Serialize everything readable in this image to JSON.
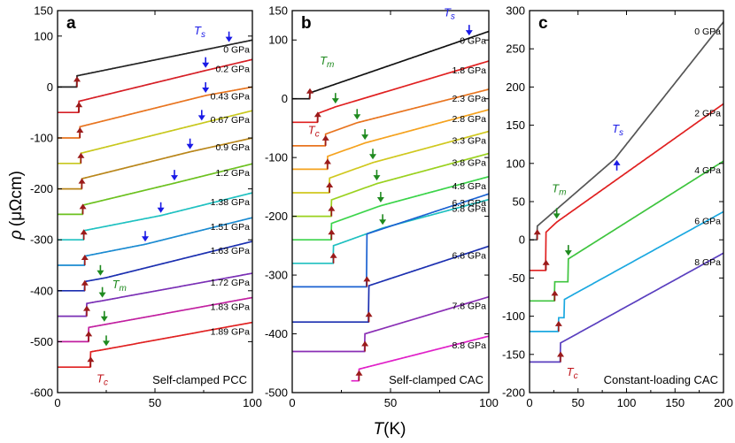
{
  "figure": {
    "xlabel_main": "T",
    "xlabel_unit": "(K)",
    "ylabel_main": "ρ",
    "ylabel_unit": "(μΩcm)"
  },
  "colors": {
    "tc_arrow": "#9b1b1b",
    "ts_arrow": "#1a1ae6",
    "tm_arrow": "#1f8a1f",
    "tc_text": "#c0161c",
    "ts_text": "#1a1ae6",
    "tm_text": "#1f8a1f"
  },
  "chart_data": [
    {
      "type": "line",
      "panel": "a",
      "title": "Self-clamped PCC",
      "xlim": [
        0,
        100
      ],
      "ylim": [
        -600,
        150
      ],
      "xticks": [
        0,
        50,
        100
      ],
      "yticks": [
        150,
        100,
        0,
        -100,
        -200,
        -300,
        -400,
        -500,
        -600
      ],
      "xlabel": "T (K)",
      "ylabel": "ρ (μΩcm)",
      "annotations": {
        "ts": "T",
        "ts_sub": "s",
        "tm": "T",
        "tm_sub": "m",
        "tc": "T",
        "tc_sub": "c"
      },
      "series": [
        {
          "name": "0 GPa",
          "color": "#222222",
          "offset": 0,
          "Tc": 10,
          "jump": 22,
          "s1": 0.78,
          "s2": 0.78,
          "Tk": 150,
          "Ts": 88
        },
        {
          "name": "0.2 GPa",
          "color": "#d61f26",
          "offset": -50,
          "Tc": 11,
          "jump": 22,
          "s1": 0.93,
          "s2": 0.9,
          "Tk": 76,
          "Ts": 76
        },
        {
          "name": "0.43 GPa",
          "color": "#e8741f",
          "offset": -100,
          "Tc": 11.5,
          "jump": 22,
          "s1": 0.95,
          "s2": 0.7,
          "Tk": 76,
          "Ts": 76
        },
        {
          "name": "0.67 GPa",
          "color": "#c8c81e",
          "offset": -150,
          "Tc": 12,
          "jump": 20,
          "s1": 0.95,
          "s2": 0.95,
          "Tk": 70,
          "Ts": 74
        },
        {
          "name": "0.9 GPa",
          "color": "#b9861a",
          "offset": -200,
          "Tc": 12.5,
          "jump": 20,
          "s1": 0.95,
          "s2": 0.85,
          "Tk": 68,
          "Ts": 68
        },
        {
          "name": "1.2 GPa",
          "color": "#6cc11f",
          "offset": -250,
          "Tc": 13,
          "jump": 18,
          "s1": 0.92,
          "s2": 0.95,
          "Tk": 60,
          "Ts": 60
        },
        {
          "name": "1.38 GPa",
          "color": "#1fc1c1",
          "offset": -300,
          "Tc": 13.5,
          "jump": 18,
          "s1": 0.75,
          "s2": 0.95,
          "Tk": 53,
          "Ts": 53
        },
        {
          "name": "1.51 GPa",
          "color": "#1b8bd1",
          "offset": -350,
          "Tc": 14,
          "jump": 18,
          "s1": 0.75,
          "s2": 0.95,
          "Tk": 45,
          "Ts": 45
        },
        {
          "name": "1.63 GPa",
          "color": "#1b2fb0",
          "offset": -400,
          "Tc": 14,
          "jump": 18,
          "s1": 0.7,
          "s2": 0.95,
          "Tk": 25,
          "Tm": 22
        },
        {
          "name": "1.72 GPa",
          "color": "#7a2fb5",
          "offset": -450,
          "Tc": 15,
          "jump": 25,
          "s1": 0.68,
          "s2": 0.7,
          "Tk": 24,
          "Tm": 23
        },
        {
          "name": "1.83 GPa",
          "color": "#c11fa0",
          "offset": -500,
          "Tc": 16,
          "jump": 28,
          "s1": 0.68,
          "s2": 0.7,
          "Tk": 25,
          "Tm": 24
        },
        {
          "name": "1.89 GPa",
          "color": "#e02020",
          "offset": -550,
          "Tc": 17,
          "jump": 30,
          "s1": 0.68,
          "s2": 0.7,
          "Tk": 26,
          "Tm": 25
        }
      ]
    },
    {
      "type": "line",
      "panel": "b",
      "title": "Self-clamped CAC",
      "xlim": [
        0,
        100
      ],
      "ylim": [
        -500,
        150
      ],
      "xticks": [
        0,
        50,
        100
      ],
      "yticks": [
        150,
        100,
        0,
        -100,
        -200,
        -300,
        -400,
        -500
      ],
      "xlabel": "T (K)",
      "ylabel": "ρ (μΩcm)",
      "annotations": {
        "ts": "T",
        "ts_sub": "s",
        "tm": "T",
        "tm_sub": "m",
        "tc": "T",
        "tc_sub": "c"
      },
      "series": [
        {
          "name": "0 GPa",
          "color": "#111111",
          "offset": 0,
          "Tc": 9,
          "jump": 10,
          "s1": 1.15,
          "s2": 1.15,
          "Tk": 150,
          "Ts": 90
        },
        {
          "name": "1.8 GPa",
          "color": "#e02020",
          "offset": -40,
          "Tc": 13,
          "jump": 15,
          "s1": 1.25,
          "s2": 1.0,
          "Tk": 22,
          "Tm": 22
        },
        {
          "name": "2.3 GPa",
          "color": "#e8741f",
          "offset": -80,
          "Tc": 17,
          "jump": 20,
          "s1": 1.2,
          "s2": 0.85,
          "Tk": 33,
          "Tm": 33
        },
        {
          "name": "2.8 GPa",
          "color": "#f5a21e",
          "offset": -120,
          "Tc": 18,
          "jump": 22,
          "s1": 1.2,
          "s2": 0.9,
          "Tk": 37,
          "Tm": 37
        },
        {
          "name": "3.3 GPa",
          "color": "#d0c81e",
          "offset": -160,
          "Tc": 19,
          "jump": 25,
          "s1": 1.2,
          "s2": 0.9,
          "Tk": 41,
          "Tm": 41
        },
        {
          "name": "3.8 GPa",
          "color": "#9ad11e",
          "offset": -200,
          "Tc": 20,
          "jump": 28,
          "s1": 1.2,
          "s2": 0.9,
          "Tk": 43,
          "Tm": 43
        },
        {
          "name": "4.8 GPa",
          "color": "#3bd44a",
          "offset": -240,
          "Tc": 20,
          "jump": 28,
          "s1": 1.2,
          "s2": 0.9,
          "Tk": 45,
          "Tm": 45
        },
        {
          "name": "5.8 GPa",
          "color": "#1fc0c0",
          "offset": -280,
          "Tc": 21,
          "jump": 30,
          "s1": 1.2,
          "s2": 0.9,
          "Tk": 46,
          "Tm": 46
        },
        {
          "name": "6.3 GPa",
          "color": "#1b62d1",
          "offset": -320,
          "Tc": 38,
          "jump": 90,
          "s1": 0,
          "s2": 1.1
        },
        {
          "name": "6.8 GPa",
          "color": "#1b2fb0",
          "offset": -380,
          "Tc": 39,
          "jump": 62,
          "s1": 0,
          "s2": 1.1
        },
        {
          "name": "7.8 GPa",
          "color": "#8a2fb5",
          "offset": -430,
          "Tc": 37,
          "jump": 30,
          "s1": 0,
          "s2": 1.0
        },
        {
          "name": "8.8 GPa",
          "color": "#e020c8",
          "offset": -480,
          "Tc": 34,
          "jump": 20,
          "s1": 0,
          "s2": 0.85,
          "xstart": 30
        }
      ]
    },
    {
      "type": "line",
      "panel": "c",
      "title": "Constant-loading CAC",
      "xlim": [
        0,
        200
      ],
      "ylim": [
        -200,
        300
      ],
      "xticks": [
        0,
        50,
        100,
        150,
        200
      ],
      "yticks": [
        300,
        250,
        200,
        150,
        100,
        50,
        0,
        -50,
        -100,
        -150,
        -200
      ],
      "xlabel": "T (K)",
      "ylabel": "ρ (μΩcm)",
      "annotations": {
        "ts": "T",
        "ts_sub": "s",
        "tm": "T",
        "tm_sub": "m",
        "tc": "T",
        "tc_sub": "c"
      },
      "series": [
        {
          "name": "0 GPa",
          "color": "#555555",
          "offset": 0,
          "Tc": 8,
          "jump": 18,
          "s1": 1.1,
          "s2": 1.6,
          "Tk": 88,
          "Ts": 90
        },
        {
          "name": "2 GPa",
          "color": "#e02020",
          "offset": -40,
          "Tc": 17,
          "jump": 50,
          "s1": 1.2,
          "s2": 0.9,
          "Tk": 28,
          "Tm": 28
        },
        {
          "name": "4 GPa",
          "color": "#3ec43e",
          "offset": -80,
          "Tc": 26,
          "jump": 25,
          "s1": 0,
          "s2": 0.8,
          "Tk": 40,
          "Tm": 40,
          "jump2": 30
        },
        {
          "name": "6 GPa",
          "color": "#1ba8e0",
          "offset": -120,
          "Tc": 30,
          "jump": 18,
          "s1": 0,
          "s2": 0.7,
          "Tk": 36,
          "jump2": 24
        },
        {
          "name": "8 GPa",
          "color": "#5a3fbf",
          "offset": -160,
          "Tc": 32,
          "jump": 25,
          "s1": 0,
          "s2": 0.7
        }
      ]
    }
  ]
}
